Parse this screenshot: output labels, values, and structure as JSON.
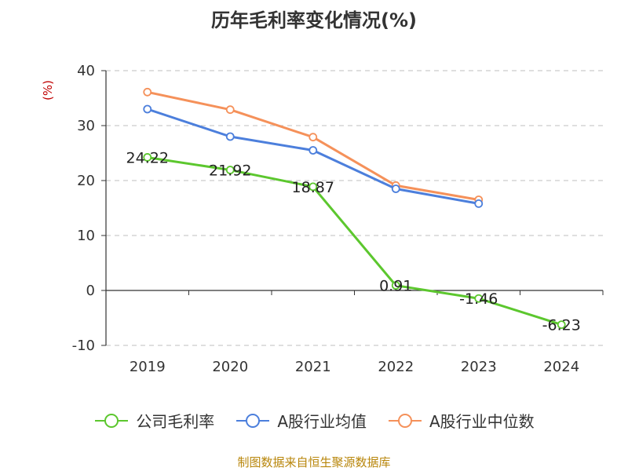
{
  "chart_data": {
    "type": "line",
    "title": "历年毛利率变化情况(%)",
    "ylabel": "(%)",
    "xlabel": "",
    "categories": [
      "2019",
      "2020",
      "2021",
      "2022",
      "2023",
      "2024"
    ],
    "ylim": [
      -10,
      40
    ],
    "yticks": [
      -10,
      0,
      10,
      20,
      30,
      40
    ],
    "grid": true,
    "legend_position": "bottom",
    "series": [
      {
        "name": "公司毛利率",
        "color": "#5cc72e",
        "values": [
          24.22,
          21.92,
          18.87,
          0.91,
          -1.46,
          -6.23
        ],
        "labels": [
          "24.22",
          "21.92",
          "18.87",
          "0.91",
          "-1.46",
          "-6.23"
        ]
      },
      {
        "name": "A股行业均值",
        "color": "#4c7fdc",
        "values": [
          33.0,
          28.0,
          25.5,
          18.5,
          15.8,
          null
        ]
      },
      {
        "name": "A股行业中位数",
        "color": "#f5915a",
        "values": [
          36.1,
          32.9,
          27.9,
          19.1,
          16.5,
          null
        ]
      }
    ]
  },
  "footer": "制图数据来自恒生聚源数据库"
}
